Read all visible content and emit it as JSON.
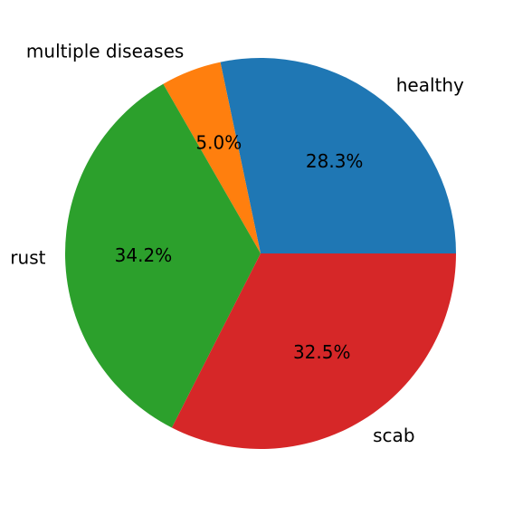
{
  "chart_data": {
    "type": "pie",
    "title": "",
    "labels": [
      "healthy",
      "multiple diseases",
      "rust",
      "scab"
    ],
    "percent_labels": [
      "28.3%",
      "5.0%",
      "34.2%",
      "32.5%"
    ],
    "values": [
      28.3,
      5.0,
      34.2,
      32.5
    ],
    "colors": [
      "#1f77b4",
      "#ff7f0e",
      "#2ca02c",
      "#d62728"
    ],
    "start_angle_deg": 0,
    "direction": "counterclockwise",
    "legend": "none"
  }
}
